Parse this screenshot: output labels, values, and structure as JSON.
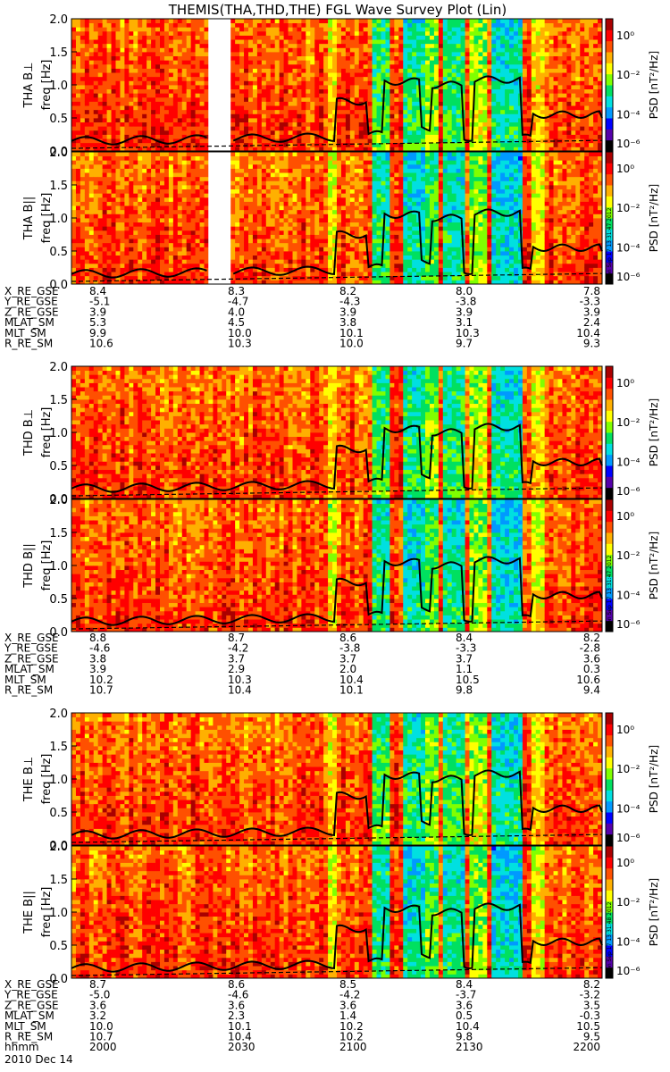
{
  "title": "THEMIS(THA,THD,THE) FGL Wave Survey Plot (Lin)",
  "chart_data": {
    "type": "heatmap",
    "y_axis": {
      "label": "freq [Hz]",
      "range": [
        0,
        2.0
      ],
      "ticks": [
        "0.0",
        "0.5",
        "1.0",
        "1.5",
        "2.0"
      ]
    },
    "colorbar": {
      "label": "PSD [nT²/Hz]",
      "scale": "log",
      "range": [
        1e-07,
        10
      ],
      "tick_labels": [
        "10⁰",
        "10⁻²",
        "10⁻⁴",
        "10⁻⁶"
      ],
      "colors": [
        "#000000",
        "#5500aa",
        "#0000ff",
        "#0099ff",
        "#00e0e0",
        "#00e060",
        "#80ff00",
        "#ffff00",
        "#ffb000",
        "#ff5000",
        "#ff0000",
        "#aa0000"
      ]
    },
    "panels": [
      {
        "name": "THA B⊥",
        "probe": "THA",
        "stamp": "",
        "gap": [
          0.258,
          0.3
        ]
      },
      {
        "name": "THA B||",
        "probe": "THA",
        "stamp": "Mon Sep 17 13:31:47 2012",
        "gap": [
          0.258,
          0.3
        ]
      },
      {
        "name": "THD B⊥",
        "probe": "THD",
        "stamp": "",
        "gap": null
      },
      {
        "name": "THD B||",
        "probe": "THD",
        "stamp": "Mon Sep 17 13:31:47 2012",
        "gap": null
      },
      {
        "name": "THE B⊥",
        "probe": "THE",
        "stamp": "",
        "gap": null
      },
      {
        "name": "THE B||",
        "probe": "THE",
        "stamp": "Mon Sep 17 13:31:48 2012",
        "gap": null
      }
    ],
    "time_axis": {
      "date": "2010 Dec 14",
      "label": "hhmm",
      "ticks": [
        "2000",
        "2030",
        "2100",
        "2130",
        "2200"
      ],
      "range": [
        "20:00",
        "22:00"
      ]
    },
    "ephemeris": [
      {
        "probe": "THA",
        "rows": [
          {
            "label": "X_RE_GSE",
            "values": [
              "8.4",
              "8.3",
              "8.2",
              "8.0",
              "7.8"
            ]
          },
          {
            "label": "Y_RE_GSE",
            "values": [
              "-5.1",
              "-4.7",
              "-4.3",
              "-3.8",
              "-3.3"
            ]
          },
          {
            "label": "Z_RE_GSE",
            "values": [
              "3.9",
              "4.0",
              "3.9",
              "3.9",
              "3.9"
            ]
          },
          {
            "label": "MLAT_SM",
            "values": [
              "5.3",
              "4.5",
              "3.8",
              "3.1",
              "2.4"
            ]
          },
          {
            "label": "MLT_SM",
            "values": [
              "9.9",
              "10.0",
              "10.1",
              "10.3",
              "10.4"
            ]
          },
          {
            "label": "R_RE_SM",
            "values": [
              "10.6",
              "10.3",
              "10.0",
              "9.7",
              "9.3"
            ]
          }
        ]
      },
      {
        "probe": "THD",
        "rows": [
          {
            "label": "X_RE_GSE",
            "values": [
              "8.8",
              "8.7",
              "8.6",
              "8.4",
              "8.2"
            ]
          },
          {
            "label": "Y_RE_GSE",
            "values": [
              "-4.6",
              "-4.2",
              "-3.8",
              "-3.3",
              "-2.8"
            ]
          },
          {
            "label": "Z_RE_GSE",
            "values": [
              "3.8",
              "3.7",
              "3.7",
              "3.7",
              "3.6"
            ]
          },
          {
            "label": "MLAT_SM",
            "values": [
              "3.9",
              "2.9",
              "2.0",
              "1.1",
              "0.3"
            ]
          },
          {
            "label": "MLT_SM",
            "values": [
              "10.2",
              "10.3",
              "10.4",
              "10.5",
              "10.6"
            ]
          },
          {
            "label": "R_RE_SM",
            "values": [
              "10.7",
              "10.4",
              "10.1",
              "9.8",
              "9.4"
            ]
          }
        ]
      },
      {
        "probe": "THE",
        "rows": [
          {
            "label": "X_RE_GSE",
            "values": [
              "8.7",
              "8.6",
              "8.5",
              "8.4",
              "8.2"
            ]
          },
          {
            "label": "Y_RE_GSE",
            "values": [
              "-5.0",
              "-4.6",
              "-4.2",
              "-3.7",
              "-3.2"
            ]
          },
          {
            "label": "Z_RE_GSE",
            "values": [
              "3.6",
              "3.6",
              "3.6",
              "3.6",
              "3.5"
            ]
          },
          {
            "label": "MLAT_SM",
            "values": [
              "3.2",
              "2.3",
              "1.4",
              "0.5",
              "-0.3"
            ]
          },
          {
            "label": "MLT_SM",
            "values": [
              "10.0",
              "10.1",
              "10.2",
              "10.4",
              "10.5"
            ]
          },
          {
            "label": "R_RE_SM",
            "values": [
              "10.7",
              "10.4",
              "10.2",
              "9.8",
              "9.5"
            ]
          }
        ]
      }
    ]
  }
}
